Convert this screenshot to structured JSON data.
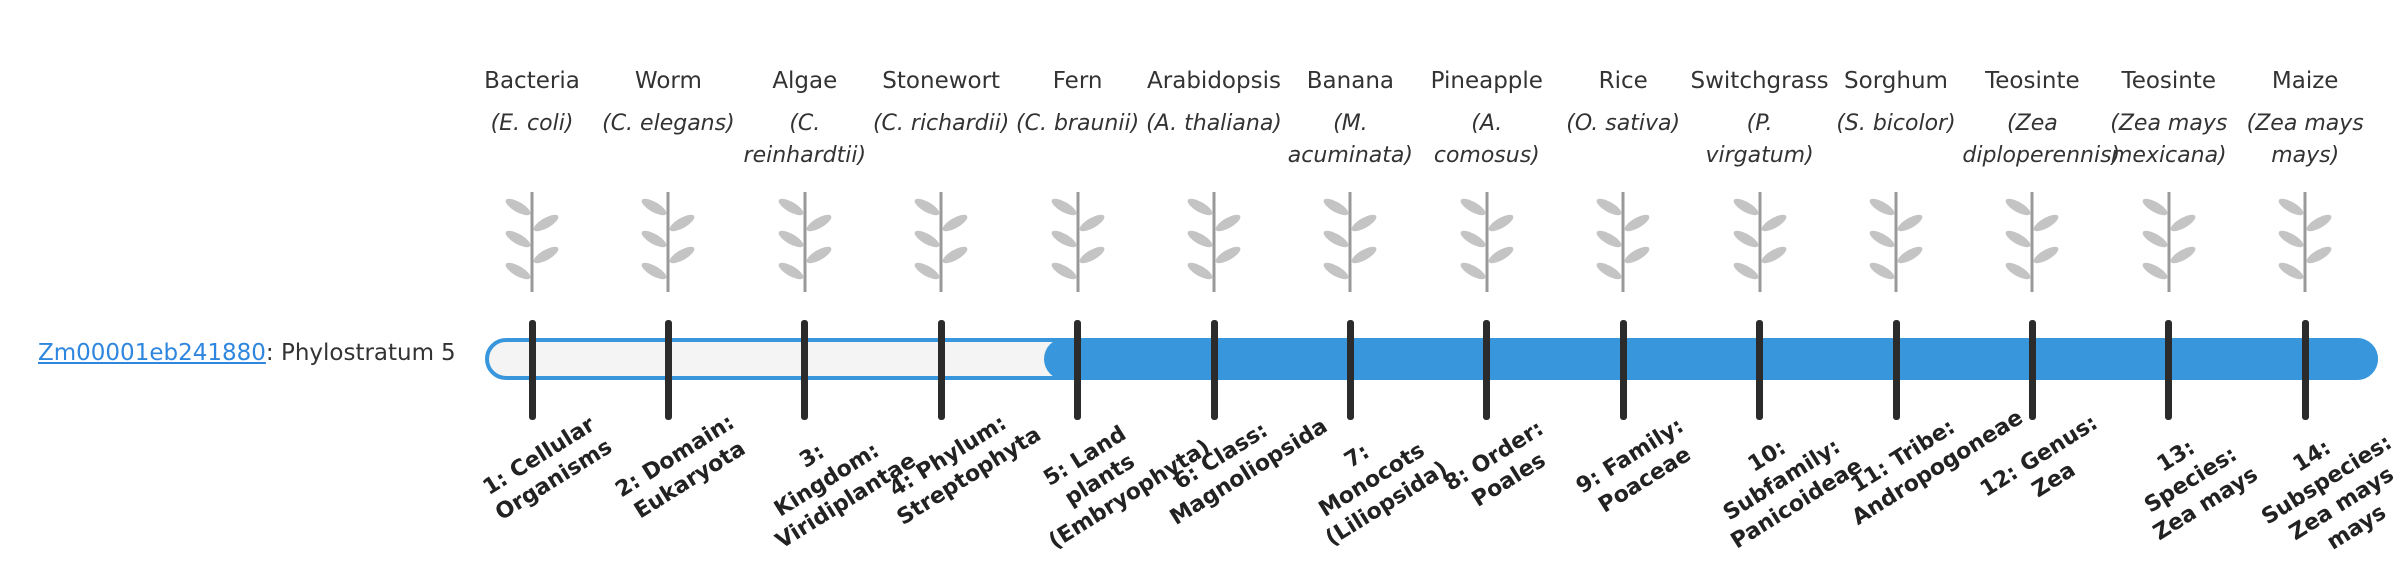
{
  "gene": {
    "id": "Zm00001eb241880",
    "label": ": Phylostratum",
    "phylostratum": 5
  },
  "strata": [
    {
      "name": "Bacteria",
      "species": "(E. coli)",
      "rank": "1: Cellular Organisms"
    },
    {
      "name": "Worm",
      "species": "(C. elegans)",
      "rank": "2: Domain: Eukaryota"
    },
    {
      "name": "Algae",
      "species": "(C. reinhardtii)",
      "rank": "3: Kingdom: Viridiplantae"
    },
    {
      "name": "Stonewort",
      "species": "(C. richardii)",
      "rank": "4: Phylum: Streptophyta"
    },
    {
      "name": "Fern",
      "species": "(C. braunii)",
      "rank": "5: Land plants (Embryophyta)"
    },
    {
      "name": "Arabidopsis",
      "species": "(A. thaliana)",
      "rank": "6: Class: Magnoliopsida"
    },
    {
      "name": "Banana",
      "species": "(M. acuminata)",
      "rank": "7: Monocots (Liliopsida)"
    },
    {
      "name": "Pineapple",
      "species": "(A. comosus)",
      "rank": "8: Order: Poales"
    },
    {
      "name": "Rice",
      "species": "(O. sativa)",
      "rank": "9: Family: Poaceae"
    },
    {
      "name": "Switchgrass",
      "species": "(P. virgatum)",
      "rank": "10: Subfamily: Panicoideae"
    },
    {
      "name": "Sorghum",
      "species": "(S. bicolor)",
      "rank": "11: Tribe: Andropogoneae"
    },
    {
      "name": "Teosinte",
      "species": "(Zea diploperennis)",
      "rank": "12: Genus: Zea"
    },
    {
      "name": "Teosinte",
      "species": "(Zea mays mexicana)",
      "rank": "13: Species: Zea mays"
    },
    {
      "name": "Maize",
      "species": "(Zea mays mays)",
      "rank": "14: Subspecies: Zea mays mays"
    }
  ]
}
